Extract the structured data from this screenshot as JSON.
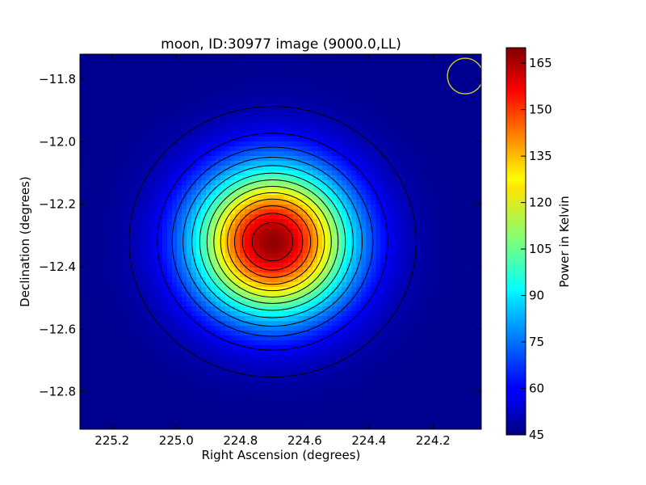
{
  "chart_data": {
    "type": "heatmap",
    "title": "moon, ID:30977 image (9000.0,LL)",
    "xlabel": "Right Ascension (degrees)",
    "ylabel": "Declination (degrees)",
    "xlim": [
      225.3,
      224.05
    ],
    "ylim": [
      -12.92,
      -11.72
    ],
    "xticks": [
      {
        "value": 225.2,
        "label": "225.2"
      },
      {
        "value": 225.0,
        "label": "225.0"
      },
      {
        "value": 224.8,
        "label": "224.8"
      },
      {
        "value": 224.6,
        "label": "224.6"
      },
      {
        "value": 224.4,
        "label": "224.4"
      },
      {
        "value": 224.2,
        "label": "224.2"
      }
    ],
    "yticks": [
      {
        "value": -11.8,
        "label": "−11.8"
      },
      {
        "value": -12.0,
        "label": "−12.0"
      },
      {
        "value": -12.2,
        "label": "−12.2"
      },
      {
        "value": -12.4,
        "label": "−12.4"
      },
      {
        "value": -12.6,
        "label": "−12.6"
      },
      {
        "value": -12.8,
        "label": "−12.8"
      }
    ],
    "colorbar": {
      "label": "Power in Kelvin",
      "range": [
        45,
        170
      ],
      "ticks": [
        {
          "value": 45,
          "label": "45"
        },
        {
          "value": 60,
          "label": "60"
        },
        {
          "value": 75,
          "label": "75"
        },
        {
          "value": 90,
          "label": "90"
        },
        {
          "value": 105,
          "label": "105"
        },
        {
          "value": 120,
          "label": "120"
        },
        {
          "value": 135,
          "label": "135"
        },
        {
          "value": 150,
          "label": "150"
        },
        {
          "value": 165,
          "label": "165"
        }
      ],
      "colormap": "jet"
    },
    "source": {
      "center_ra": 224.7,
      "center_dec": -12.32,
      "peak_kelvin": 168,
      "background_kelvin": 47,
      "contour_count": 13
    },
    "beam": {
      "ra": 224.1,
      "dec": -11.79,
      "color": "#c8c828"
    }
  }
}
